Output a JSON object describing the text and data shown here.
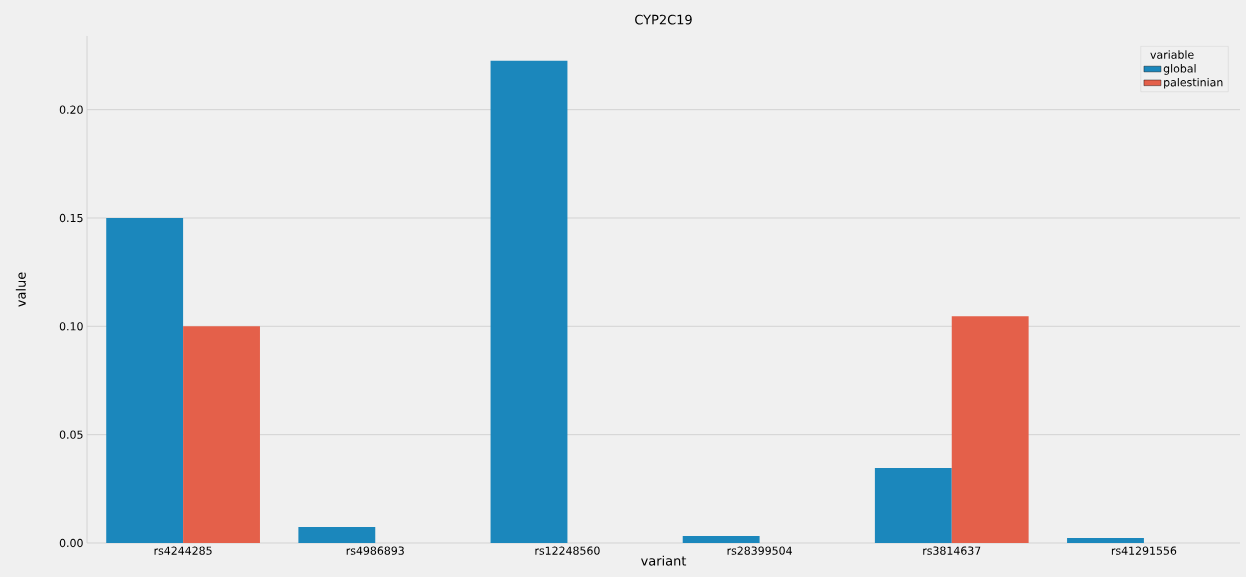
{
  "chart_data": {
    "type": "bar",
    "title": "CYP2C19",
    "xlabel": "variant",
    "ylabel": "value",
    "legend_title": "variable",
    "categories": [
      "rs4244285",
      "rs4986893",
      "rs12248560",
      "rs28399504",
      "rs3814637",
      "rs41291556"
    ],
    "series": [
      {
        "name": "global",
        "color": "#1b87bc",
        "values": [
          0.15,
          0.0074,
          0.2226,
          0.0032,
          0.0346,
          0.0023
        ]
      },
      {
        "name": "palestinian",
        "color": "#e4604a",
        "values": [
          0.1,
          0,
          0,
          0,
          0.1046,
          0
        ]
      }
    ],
    "ylim": [
      0,
      0.234
    ],
    "yticks": [
      {
        "value": 0,
        "label": "0.00"
      },
      {
        "value": 0.05,
        "label": "0.05"
      },
      {
        "value": 0.1,
        "label": "0.10"
      },
      {
        "value": 0.15,
        "label": "0.15"
      },
      {
        "value": 0.2,
        "label": "0.20"
      }
    ],
    "grid": "y",
    "legend": "top right"
  }
}
